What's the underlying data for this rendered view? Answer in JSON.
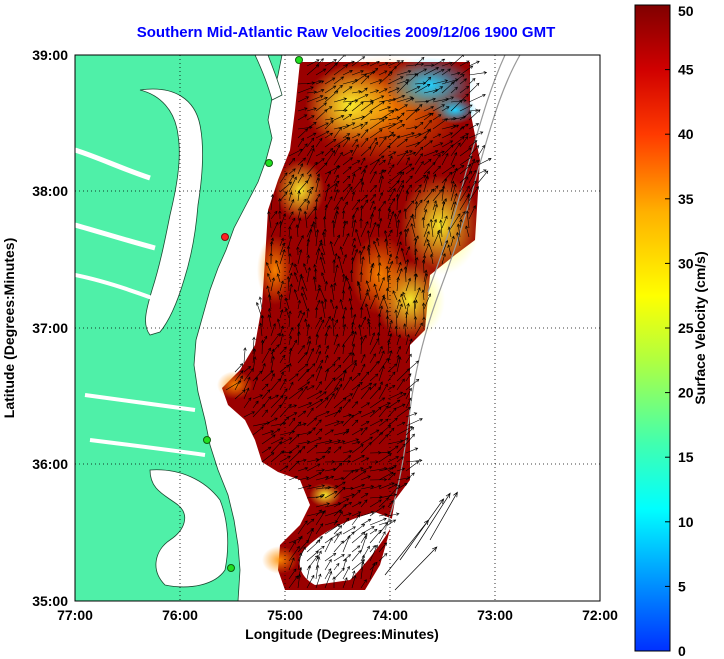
{
  "title": "Southern Mid-Atlantic Raw Velocities 2009/12/06 1900 GMT",
  "xlabel": "Longitude (Degrees:Minutes)",
  "ylabel": "Latitude (Degrees:Minutes)",
  "x_ticks": [
    "77:00",
    "76:00",
    "75:00",
    "74:00",
    "73:00",
    "72:00"
  ],
  "y_ticks": [
    "39:00",
    "38:00",
    "37:00",
    "36:00",
    "35:00"
  ],
  "colorbar": {
    "label": "Surface Velocity (cm/s)",
    "ticks": [
      "0",
      "5",
      "10",
      "15",
      "20",
      "25",
      "30",
      "35",
      "40",
      "45",
      "50"
    ],
    "range": [
      0,
      50
    ]
  },
  "colors": {
    "land": "#4ff0a8",
    "title": "#0000ff"
  }
}
